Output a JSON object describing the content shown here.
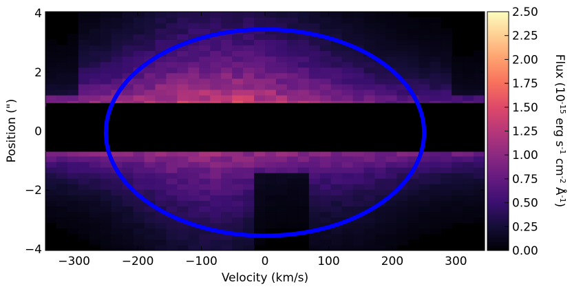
{
  "chart_data": {
    "type": "heatmap",
    "xlabel": "Velocity (km/s)",
    "ylabel": "Position (\")",
    "xlim": [
      -345,
      345
    ],
    "ylim": [
      -4.05,
      4.05
    ],
    "x_ticks": [
      -300,
      -200,
      -100,
      0,
      100,
      200,
      300
    ],
    "x_tick_labels": [
      "−300",
      "−200",
      "−100",
      "0",
      "100",
      "200",
      "300"
    ],
    "y_ticks": [
      -4,
      -2,
      0,
      2,
      4
    ],
    "y_tick_labels": [
      "−4",
      "−2",
      "0",
      "2",
      "4"
    ],
    "colorbar": {
      "label": "Flux (10$^{-15}$ erg s$^{-1}$ cm$^{-2}$ Å$^{-1}$)",
      "min": 0.0,
      "max": 2.5,
      "ticks": [
        0.0,
        0.25,
        0.5,
        0.75,
        1.0,
        1.25,
        1.5,
        1.75,
        2.0,
        2.25,
        2.5
      ],
      "tick_labels": [
        "0.00",
        "0.25",
        "0.50",
        "0.75",
        "1.00",
        "1.25",
        "1.50",
        "1.75",
        "2.00",
        "2.25",
        "2.50"
      ],
      "colormap": "magma"
    },
    "masked_band_y": [
      -0.7,
      0.95
    ],
    "ellipse": {
      "center_x": 0,
      "center_y": -0.05,
      "semi_axis_x": 250,
      "semi_axis_y": 3.5,
      "color": "#0000ff"
    },
    "background_color": "#000000"
  }
}
